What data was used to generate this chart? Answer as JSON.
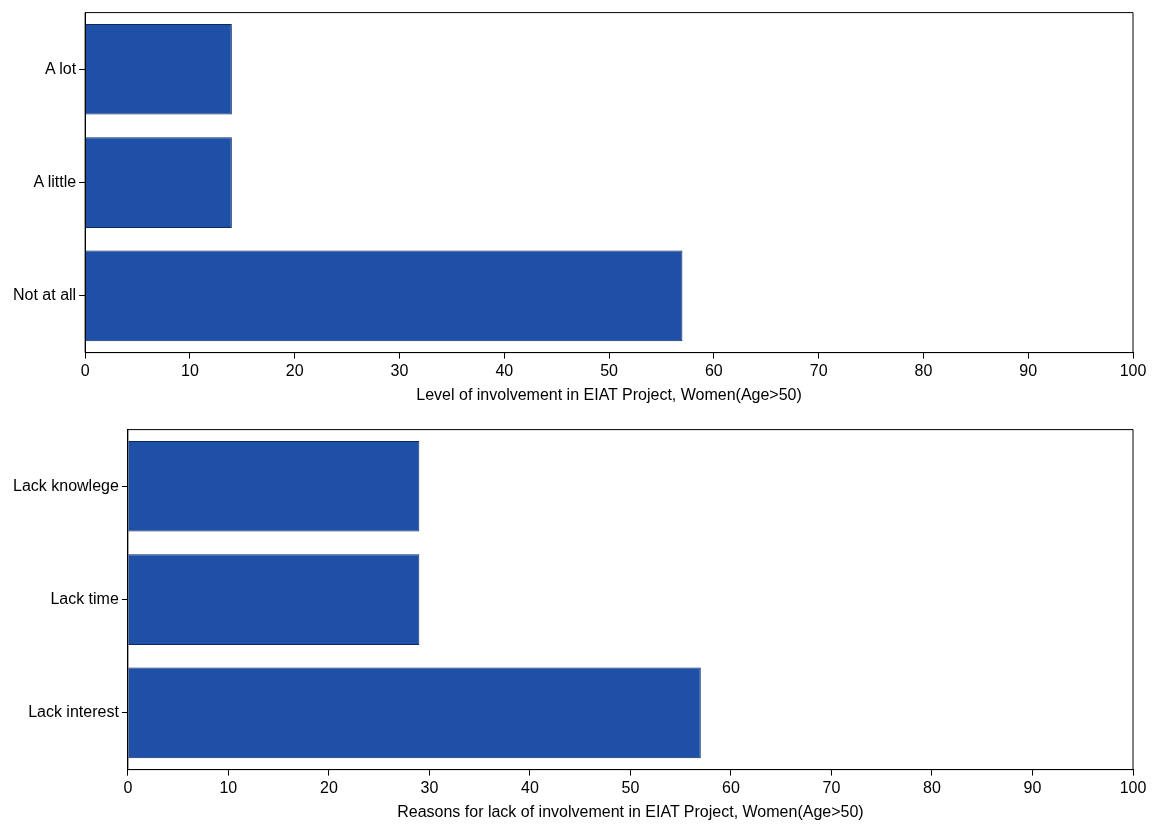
{
  "chart_data": [
    {
      "type": "bar",
      "orientation": "horizontal",
      "categories": [
        "A lot",
        "A little",
        "Not at all"
      ],
      "values": [
        14,
        14,
        57
      ],
      "color": "#1f50a8",
      "xlabel": "Level of involvement in EIAT Project, Women(Age>50)",
      "xlim": [
        0,
        100
      ],
      "xticks": [
        0,
        10,
        20,
        30,
        40,
        50,
        60,
        70,
        80,
        90,
        100
      ],
      "grid": false,
      "legend": false
    },
    {
      "type": "bar",
      "orientation": "horizontal",
      "categories": [
        "Lack knowlege",
        "Lack time",
        "Lack interest"
      ],
      "values": [
        29,
        29,
        57
      ],
      "color": "#1f50a8",
      "xlabel": "Reasons for lack of involvement in EIAT Project, Women(Age>50)",
      "xlim": [
        0,
        100
      ],
      "xticks": [
        0,
        10,
        20,
        30,
        40,
        50,
        60,
        70,
        80,
        90,
        100
      ],
      "grid": false,
      "legend": false
    }
  ]
}
